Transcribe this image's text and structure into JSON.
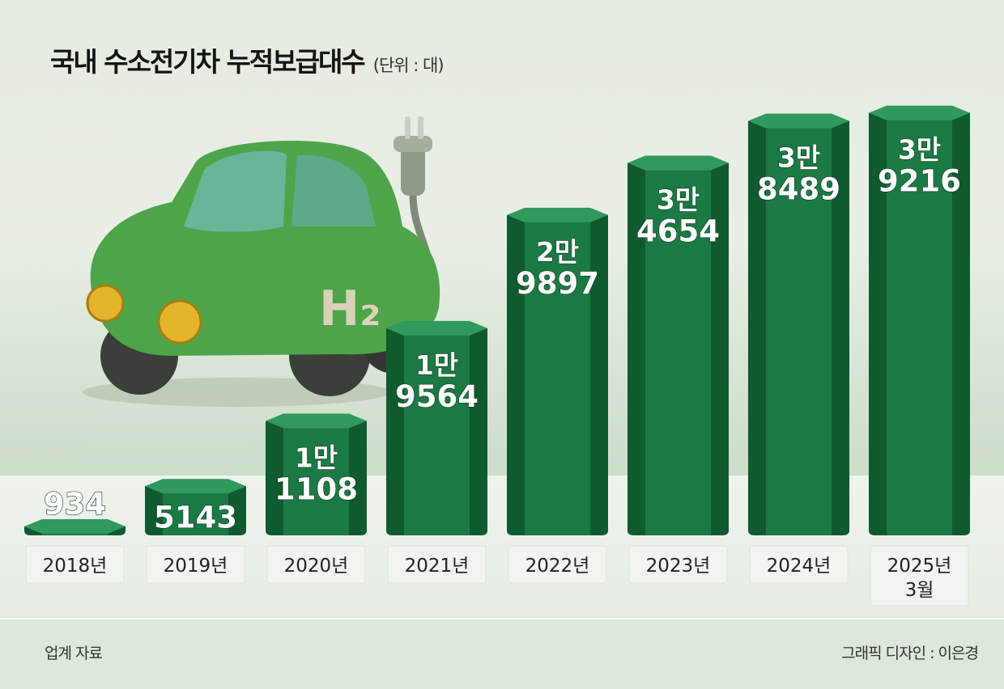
{
  "title": "국내 수소전기차 누적보급대수",
  "unit": "(단위 : 대)",
  "source": "업계 자료",
  "credit": "그래픽 디자인 : 이은경",
  "car_badge": "H₂",
  "colors": {
    "bar_front": "#1b7a43",
    "bar_side": "#0f5a2f",
    "bar_top": "#2f9a5c",
    "car": "#4fa84a",
    "background": "#e6ede2"
  },
  "chart_data": {
    "type": "bar",
    "title": "국내 수소전기차 누적보급대수",
    "unit": "(단위 : 대)",
    "categories": [
      "2018년",
      "2019년",
      "2020년",
      "2021년",
      "2022년",
      "2023년",
      "2024년",
      "2025년 3월"
    ],
    "values": [
      934,
      5143,
      11108,
      19564,
      29897,
      34654,
      38489,
      39216
    ],
    "value_labels": [
      [
        "934"
      ],
      [
        "5143"
      ],
      [
        "1만",
        "1108"
      ],
      [
        "1만",
        "9564"
      ],
      [
        "2만",
        "9897"
      ],
      [
        "3만",
        "4654"
      ],
      [
        "3만",
        "8489"
      ],
      [
        "3만",
        "9216"
      ]
    ],
    "category_labels": [
      [
        "2018년"
      ],
      [
        "2019년"
      ],
      [
        "2020년"
      ],
      [
        "2021년"
      ],
      [
        "2022년"
      ],
      [
        "2023년"
      ],
      [
        "2024년"
      ],
      [
        "2025년",
        "3월"
      ]
    ],
    "ylim": [
      0,
      40000
    ],
    "grid": false,
    "legend": "none"
  }
}
